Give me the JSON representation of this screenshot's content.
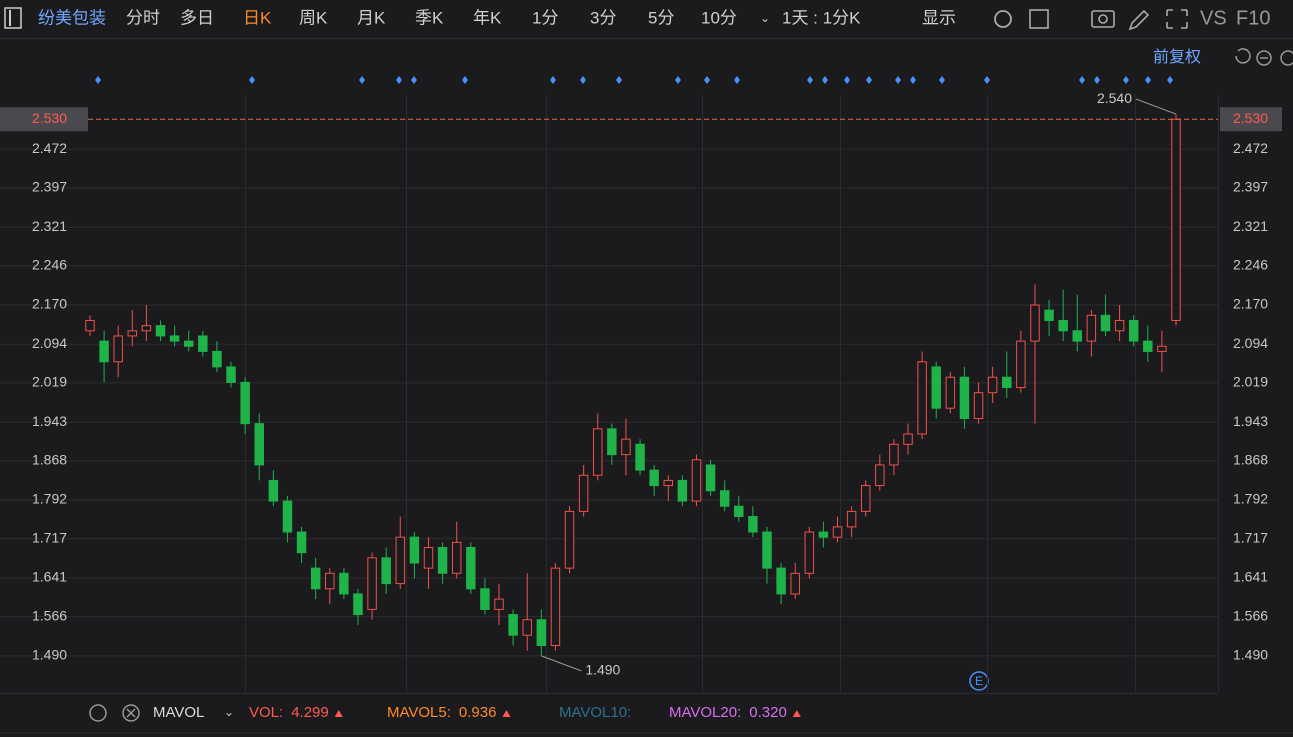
{
  "toolbar": {
    "stock_name": "纷美包装",
    "periods": [
      "分时",
      "多日",
      "日K",
      "周K",
      "月K",
      "季K",
      "年K",
      "1分",
      "3分",
      "5分",
      "10分"
    ],
    "selected_period": "日K",
    "interval": "1天 : 1分K",
    "display": "显示",
    "right_tabs": [
      "VS",
      "F10"
    ]
  },
  "adjust": "前复权",
  "event_marker": "E",
  "chart_data": {
    "type": "candlestick",
    "up_color": "#f0504a",
    "down_color": "#1fb34a",
    "ylim": [
      1.418,
      2.577
    ],
    "yticks": [
      {
        "value": 1.49,
        "label": "1.490"
      },
      1.566,
      1.641,
      1.717,
      1.792,
      1.868,
      1.943,
      2.019,
      2.094,
      {
        "value": 2.17,
        "label": "2.170"
      },
      2.246,
      2.321,
      2.397,
      2.472
    ],
    "current_price": {
      "value": 2.53,
      "label": "2.530"
    },
    "max_label": {
      "value": 2.54,
      "label": "2.540"
    },
    "min_label": {
      "value": 1.49,
      "label": "1.490"
    },
    "open": [
      2.12,
      2.1,
      2.06,
      2.11,
      2.12,
      2.13,
      2.11,
      2.1,
      2.11,
      2.08,
      2.05,
      2.02,
      1.94,
      1.83,
      1.79,
      1.73,
      1.66,
      1.62,
      1.65,
      1.61,
      1.58,
      1.68,
      1.63,
      1.72,
      1.66,
      1.7,
      1.65,
      1.7,
      1.62,
      1.58,
      1.57,
      1.53,
      1.56,
      1.51,
      1.66,
      1.77,
      1.84,
      1.93,
      1.88,
      1.9,
      1.85,
      1.82,
      1.83,
      1.79,
      1.86,
      1.81,
      1.78,
      1.76,
      1.73,
      1.66,
      1.61,
      1.65,
      1.73,
      1.72,
      1.74,
      1.77,
      1.82,
      1.86,
      1.9,
      1.92,
      2.05,
      1.97,
      2.03,
      1.95,
      2.0,
      2.03,
      2.01,
      2.1,
      2.16,
      2.14,
      2.12,
      2.1,
      2.15,
      2.12,
      2.14,
      2.1,
      2.08,
      2.14
    ],
    "high": [
      2.15,
      2.12,
      2.13,
      2.16,
      2.17,
      2.14,
      2.13,
      2.12,
      2.12,
      2.1,
      2.06,
      2.03,
      1.96,
      1.85,
      1.8,
      1.74,
      1.68,
      1.66,
      1.66,
      1.62,
      1.69,
      1.7,
      1.76,
      1.73,
      1.72,
      1.71,
      1.75,
      1.71,
      1.64,
      1.63,
      1.58,
      1.65,
      1.58,
      1.67,
      1.78,
      1.86,
      1.96,
      1.94,
      1.95,
      1.91,
      1.86,
      1.84,
      1.84,
      1.88,
      1.87,
      1.83,
      1.8,
      1.78,
      1.74,
      1.67,
      1.67,
      1.74,
      1.75,
      1.76,
      1.78,
      1.83,
      1.88,
      1.91,
      1.94,
      2.08,
      2.06,
      2.04,
      2.05,
      2.02,
      2.05,
      2.08,
      2.12,
      2.21,
      2.18,
      2.2,
      2.19,
      2.16,
      2.19,
      2.17,
      2.15,
      2.13,
      2.12,
      2.54
    ],
    "low": [
      2.11,
      2.02,
      2.03,
      2.09,
      2.1,
      2.1,
      2.09,
      2.08,
      2.07,
      2.04,
      2.01,
      1.92,
      1.83,
      1.78,
      1.71,
      1.67,
      1.6,
      1.59,
      1.6,
      1.55,
      1.56,
      1.61,
      1.62,
      1.64,
      1.62,
      1.63,
      1.64,
      1.61,
      1.57,
      1.55,
      1.51,
      1.5,
      1.49,
      1.5,
      1.65,
      1.76,
      1.83,
      1.86,
      1.84,
      1.84,
      1.8,
      1.79,
      1.78,
      1.78,
      1.8,
      1.77,
      1.75,
      1.72,
      1.63,
      1.59,
      1.6,
      1.64,
      1.7,
      1.71,
      1.72,
      1.76,
      1.81,
      1.84,
      1.88,
      1.91,
      1.95,
      1.96,
      1.93,
      1.94,
      1.98,
      1.99,
      2.0,
      1.94,
      2.11,
      2.1,
      2.08,
      2.07,
      2.11,
      2.1,
      2.09,
      2.06,
      2.04,
      2.13
    ],
    "close": [
      2.14,
      2.06,
      2.11,
      2.12,
      2.13,
      2.11,
      2.1,
      2.09,
      2.08,
      2.05,
      2.02,
      1.94,
      1.86,
      1.79,
      1.73,
      1.69,
      1.62,
      1.65,
      1.61,
      1.57,
      1.68,
      1.63,
      1.72,
      1.67,
      1.7,
      1.65,
      1.71,
      1.62,
      1.58,
      1.6,
      1.53,
      1.56,
      1.51,
      1.66,
      1.77,
      1.84,
      1.93,
      1.88,
      1.91,
      1.85,
      1.82,
      1.83,
      1.79,
      1.87,
      1.81,
      1.78,
      1.76,
      1.73,
      1.66,
      1.61,
      1.65,
      1.73,
      1.72,
      1.74,
      1.77,
      1.82,
      1.86,
      1.9,
      1.92,
      2.06,
      1.97,
      2.03,
      1.95,
      2.0,
      2.03,
      2.01,
      2.1,
      2.17,
      2.14,
      2.12,
      2.1,
      2.15,
      2.12,
      2.14,
      2.1,
      2.08,
      2.09,
      2.53
    ]
  },
  "indicator_bar": {
    "name": "MAVOL",
    "items": [
      {
        "label": "VOL:",
        "value": "4.299"
      },
      {
        "label": "MAVOL5:",
        "value": "0.936"
      },
      {
        "label": "MAVOL10:"
      },
      {
        "label": "MAVOL20:",
        "value": "0.320"
      }
    ]
  }
}
